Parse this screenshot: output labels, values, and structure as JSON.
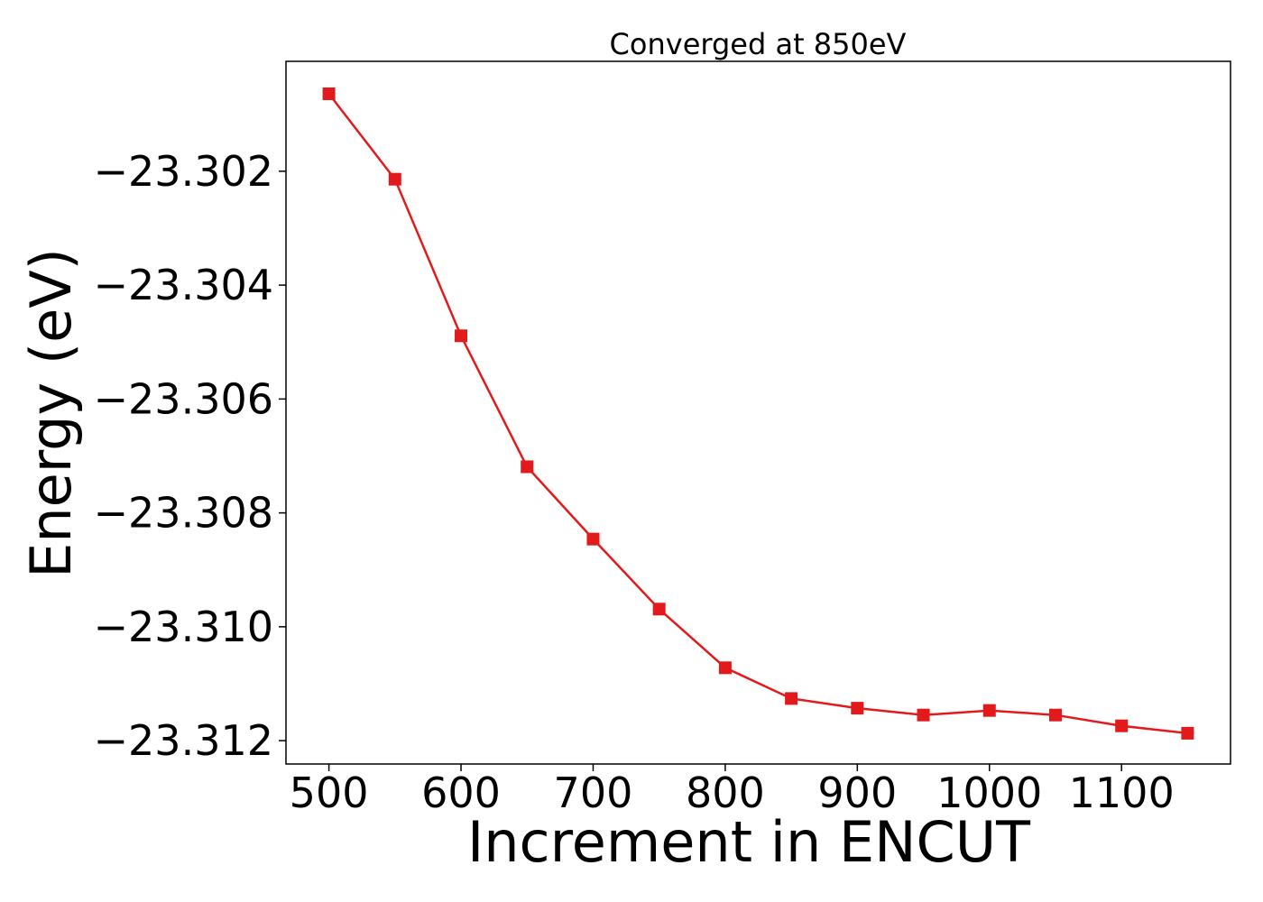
{
  "chart_data": {
    "type": "line",
    "title": "Converged at 850eV",
    "xlabel": "Increment in ENCUT",
    "ylabel": "Energy (eV)",
    "x": [
      500,
      550,
      600,
      650,
      700,
      750,
      800,
      850,
      900,
      950,
      1000,
      1050,
      1100,
      1150
    ],
    "series": [
      {
        "color": "#e31a1c",
        "marker": "square",
        "values": [
          -23.30064,
          -23.30214,
          -23.30489,
          -23.30719,
          -23.30846,
          -23.30969,
          -23.31072,
          -23.31126,
          -23.31143,
          -23.31155,
          -23.31147,
          -23.31155,
          -23.31174,
          -23.31187
        ]
      }
    ],
    "xticks": [
      500,
      600,
      700,
      800,
      900,
      1000,
      1100
    ],
    "xtick_labels": [
      "500",
      "600",
      "700",
      "800",
      "900",
      "1000",
      "1100"
    ],
    "yticks": [
      -23.302,
      -23.304,
      -23.306,
      -23.308,
      -23.31,
      -23.312
    ],
    "ytick_labels": [
      "−23.302",
      "−23.304",
      "−23.306",
      "−23.308",
      "−23.310",
      "−23.312"
    ],
    "xlim": [
      467.5,
      1182.5
    ],
    "ylim": [
      -23.31241,
      -23.30007
    ],
    "grid": false,
    "legend": "none"
  }
}
